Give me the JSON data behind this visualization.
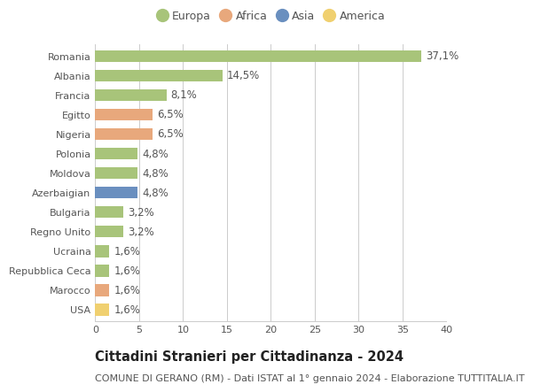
{
  "categories": [
    "Romania",
    "Albania",
    "Francia",
    "Egitto",
    "Nigeria",
    "Polonia",
    "Moldova",
    "Azerbaigian",
    "Bulgaria",
    "Regno Unito",
    "Ucraina",
    "Repubblica Ceca",
    "Marocco",
    "USA"
  ],
  "values": [
    37.1,
    14.5,
    8.1,
    6.5,
    6.5,
    4.8,
    4.8,
    4.8,
    3.2,
    3.2,
    1.6,
    1.6,
    1.6,
    1.6
  ],
  "labels": [
    "37,1%",
    "14,5%",
    "8,1%",
    "6,5%",
    "6,5%",
    "4,8%",
    "4,8%",
    "4,8%",
    "3,2%",
    "3,2%",
    "1,6%",
    "1,6%",
    "1,6%",
    "1,6%"
  ],
  "continents": [
    "Europa",
    "Europa",
    "Europa",
    "Africa",
    "Africa",
    "Europa",
    "Europa",
    "Asia",
    "Europa",
    "Europa",
    "Europa",
    "Europa",
    "Africa",
    "America"
  ],
  "continent_colors": {
    "Europa": "#a8c47a",
    "Africa": "#e8a87c",
    "Asia": "#6a8fbf",
    "America": "#f0d070"
  },
  "legend_order": [
    "Europa",
    "Africa",
    "Asia",
    "America"
  ],
  "title": "Cittadini Stranieri per Cittadinanza - 2024",
  "subtitle": "COMUNE DI GERANO (RM) - Dati ISTAT al 1° gennaio 2024 - Elaborazione TUTTITALIA.IT",
  "xlim": [
    0,
    40
  ],
  "xticks": [
    0,
    5,
    10,
    15,
    20,
    25,
    30,
    35,
    40
  ],
  "background_color": "#ffffff",
  "grid_color": "#cccccc",
  "bar_height": 0.6,
  "label_fontsize": 8.5,
  "title_fontsize": 10.5,
  "subtitle_fontsize": 8,
  "legend_fontsize": 9,
  "ytick_fontsize": 8,
  "xtick_fontsize": 8
}
